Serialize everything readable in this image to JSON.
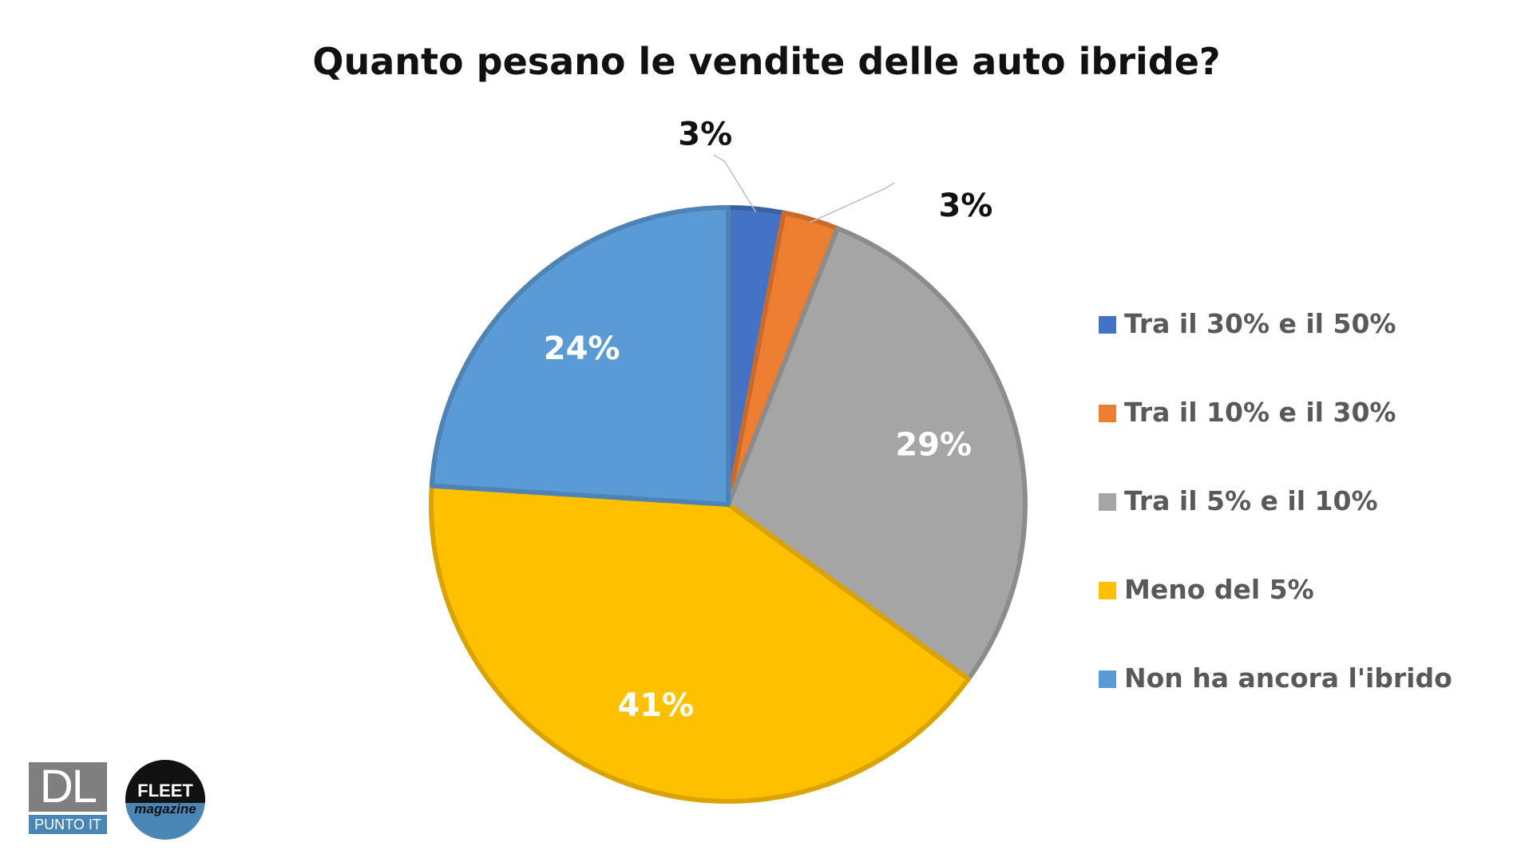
{
  "chart_data": {
    "type": "pie",
    "title": "Quanto pesano le vendite delle auto ibride?",
    "categories": [
      "Tra il 30% e il 50%",
      "Tra il 10% e il 30%",
      "Tra il 5% e il 10%",
      "Meno del 5%",
      "Non ha ancora l'ibrido"
    ],
    "values": [
      3,
      3,
      29,
      41,
      24
    ],
    "data_labels": [
      "3%",
      "3%",
      "29%",
      "41%",
      "24%"
    ],
    "colors": [
      "#4472c4",
      "#ed7d31",
      "#a5a5a5",
      "#ffc000",
      "#5b9bd5"
    ],
    "legend": "right"
  },
  "logos": {
    "dl": {
      "main": "DL",
      "sub": "PUNTO IT"
    },
    "fleet": {
      "main": "FLEET",
      "sub": "magazine"
    }
  }
}
